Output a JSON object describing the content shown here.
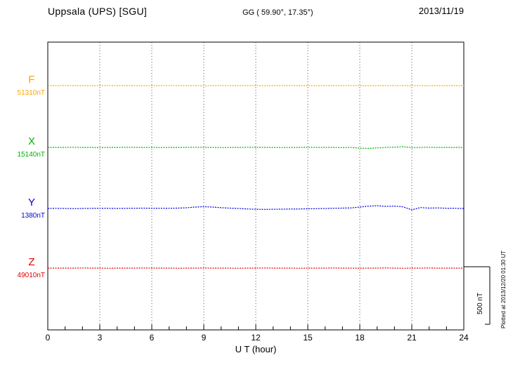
{
  "header": {
    "station": "Uppsala (UPS)  [SGU]",
    "coordinates": "GG ( 59.90°,  17.35°)",
    "date": "2013/11/19"
  },
  "axis": {
    "xlabel": "U T (hour)",
    "ticks": [
      0,
      3,
      6,
      9,
      12,
      15,
      18,
      21,
      24
    ],
    "xlim": [
      0,
      24
    ]
  },
  "scale_bar": {
    "label": "500 nT",
    "nT": 500
  },
  "footer_note": "Plotted at 2013/12/20 01:30 UT",
  "chart_data": {
    "type": "line",
    "title": "Uppsala (UPS) [SGU] magnetogram",
    "date": "2013/11/19",
    "xlabel": "U T (hour)",
    "x_start_hour": 0,
    "x_end_hour": 24,
    "sample_interval_hours": 0.5,
    "x_ticks": [
      0,
      3,
      6,
      9,
      12,
      15,
      18,
      21,
      24
    ],
    "grid": true,
    "scale_bar_nT": 500,
    "series": [
      {
        "name": "F",
        "baseline_label": "51310nT",
        "baseline_nT": 51310,
        "color": "#FFA500",
        "values_offset_nT": [
          0,
          0,
          1,
          0,
          0,
          -1,
          0,
          1,
          0,
          0,
          0,
          -1,
          0,
          0,
          1,
          0,
          0,
          0,
          -1,
          0,
          1,
          0,
          0,
          0,
          0,
          -1,
          0,
          0,
          1,
          0,
          0,
          -1,
          0,
          0,
          0,
          1,
          0,
          -2,
          0,
          0,
          1,
          0,
          0,
          0,
          -1,
          0,
          0,
          0,
          0
        ]
      },
      {
        "name": "X",
        "baseline_label": "15140nT",
        "baseline_nT": 15140,
        "color": "#00B400",
        "values_offset_nT": [
          0,
          0,
          0,
          1,
          0,
          0,
          -1,
          0,
          0,
          1,
          0,
          0,
          0,
          -1,
          0,
          0,
          0,
          1,
          0,
          0,
          -2,
          0,
          0,
          1,
          0,
          0,
          0,
          -1,
          0,
          0,
          1,
          0,
          0,
          0,
          -2,
          0,
          -6,
          -9,
          -4,
          0,
          2,
          6,
          -2,
          0,
          1,
          0,
          0,
          0,
          0
        ]
      },
      {
        "name": "Y",
        "baseline_label": "1380nT",
        "baseline_nT": 1380,
        "color": "#0000DD",
        "values_offset_nT": [
          0,
          1,
          0,
          -1,
          0,
          1,
          2,
          1,
          0,
          1,
          2,
          3,
          2,
          1,
          2,
          3,
          6,
          12,
          15,
          12,
          7,
          3,
          0,
          -4,
          -7,
          -8,
          -7,
          -6,
          -5,
          -4,
          -3,
          -2,
          0,
          2,
          3,
          5,
          12,
          20,
          24,
          18,
          21,
          14,
          -12,
          8,
          3,
          5,
          2,
          1,
          0
        ]
      },
      {
        "name": "Z",
        "baseline_label": "49010nT",
        "baseline_nT": 49010,
        "color": "#DD0000",
        "values_offset_nT": [
          0,
          0,
          0,
          0,
          1,
          0,
          0,
          -1,
          0,
          0,
          0,
          1,
          0,
          0,
          0,
          -1,
          0,
          0,
          1,
          0,
          0,
          0,
          -1,
          0,
          0,
          1,
          0,
          0,
          0,
          -1,
          0,
          0,
          0,
          1,
          0,
          0,
          -1,
          0,
          0,
          2,
          0,
          -1,
          0,
          0,
          1,
          0,
          0,
          0,
          0
        ]
      }
    ]
  }
}
